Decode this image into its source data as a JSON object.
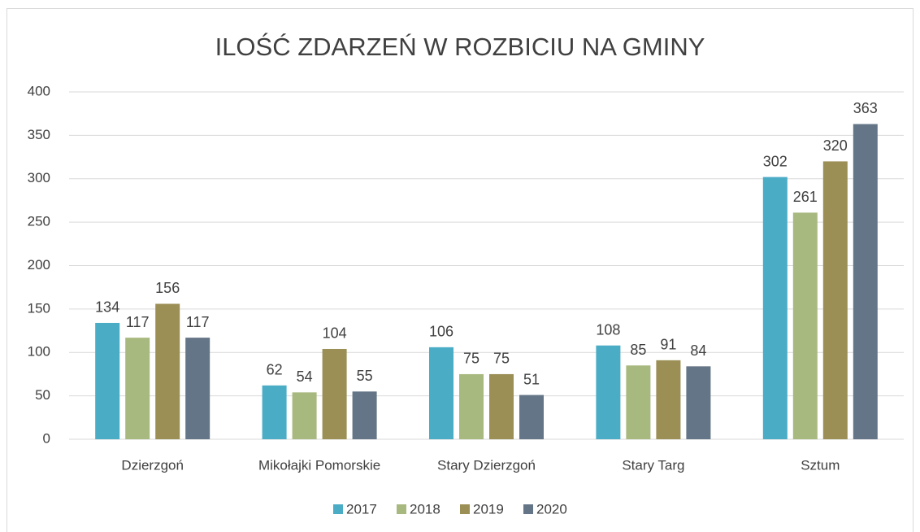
{
  "chart_data": {
    "type": "bar",
    "title": "ILOŚĆ ZDARZEŃ W ROZBICIU NA GMINY",
    "categories": [
      "Dzierzgoń",
      "Mikołajki Pomorskie",
      "Stary Dzierzgoń",
      "Stary Targ",
      "Sztum"
    ],
    "series": [
      {
        "name": "2017",
        "color": "#4bacc6",
        "values": [
          134,
          62,
          106,
          108,
          302
        ]
      },
      {
        "name": "2018",
        "color": "#a8b97f",
        "values": [
          117,
          54,
          75,
          85,
          261
        ]
      },
      {
        "name": "2019",
        "color": "#9b8f55",
        "values": [
          156,
          104,
          75,
          91,
          320
        ]
      },
      {
        "name": "2020",
        "color": "#647587",
        "values": [
          117,
          55,
          51,
          84,
          363
        ]
      }
    ],
    "ylim": [
      0,
      400
    ],
    "yticks": [
      0,
      50,
      100,
      150,
      200,
      250,
      300,
      350,
      400
    ],
    "grid": true,
    "legend": "bottom"
  }
}
